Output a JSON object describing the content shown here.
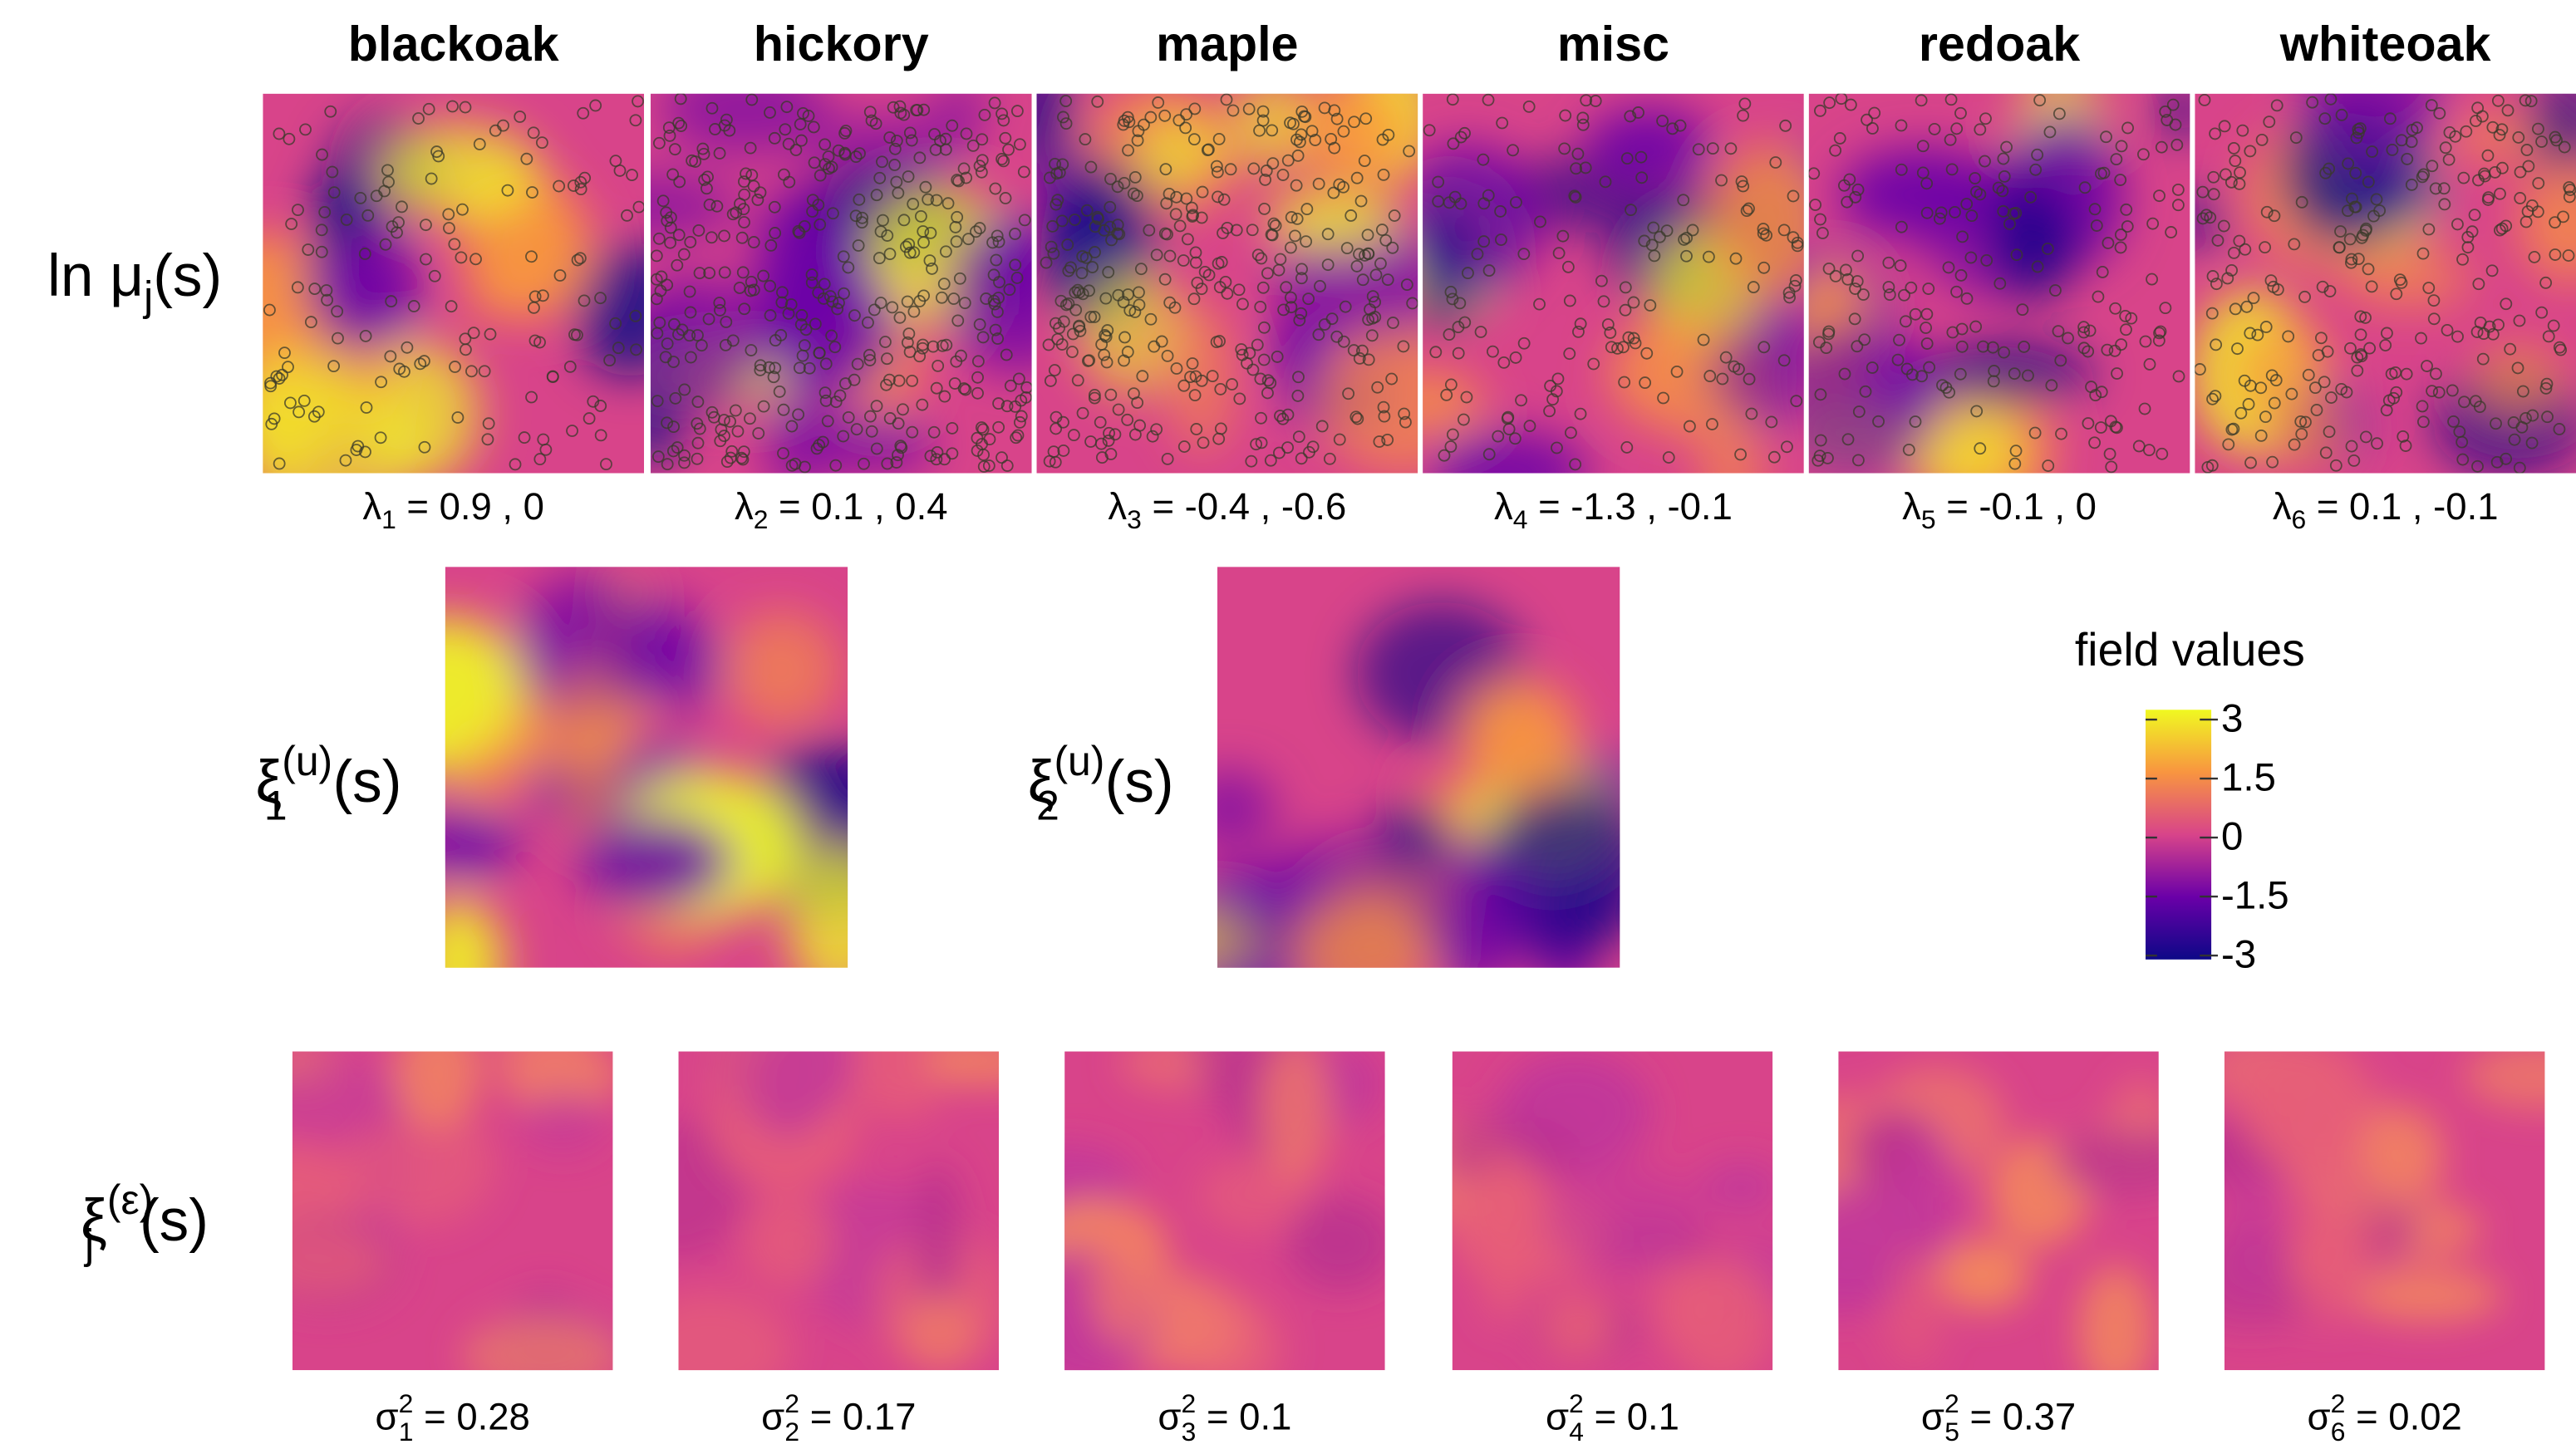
{
  "chart_data": {
    "type": "heatmap",
    "columns": [
      "blackoak",
      "hickory",
      "maple",
      "misc",
      "redoak",
      "whiteoak"
    ],
    "row_labels": [
      {
        "pre": "ln ",
        "base": "μ",
        "sub": "j",
        "rest": "(s)"
      },
      {
        "base": "ξ",
        "sub": "1",
        "sup": "(u)",
        "rest": "(s)"
      },
      {
        "base": "ξ",
        "sub": "2",
        "sup": "(u)",
        "rest": "(s)"
      },
      {
        "base": "ξ",
        "sub": "j",
        "sup": "(ε)",
        "rest": "(s)"
      }
    ],
    "lambda_labels": [
      {
        "base": "λ",
        "sub": "1",
        "rest": " = 0.9 , 0"
      },
      {
        "base": "λ",
        "sub": "2",
        "rest": " = 0.1 , 0.4"
      },
      {
        "base": "λ",
        "sub": "3",
        "rest": " = -0.4 , -0.6"
      },
      {
        "base": "λ",
        "sub": "4",
        "rest": " = -1.3 , -0.1"
      },
      {
        "base": "λ",
        "sub": "5",
        "rest": " = -0.1 , 0"
      },
      {
        "base": "λ",
        "sub": "6",
        "rest": " = 0.1 , -0.1"
      }
    ],
    "sigma_labels": [
      {
        "base": "σ",
        "sub": "1",
        "sup": "2",
        "rest": " = 0.28"
      },
      {
        "base": "σ",
        "sub": "2",
        "sup": "2",
        "rest": " = 0.17"
      },
      {
        "base": "σ",
        "sub": "3",
        "sup": "2",
        "rest": " = 0.1"
      },
      {
        "base": "σ",
        "sub": "4",
        "sup": "2",
        "rest": " = 0.1"
      },
      {
        "base": "σ",
        "sub": "5",
        "sup": "2",
        "rest": " = 0.37"
      },
      {
        "base": "σ",
        "sub": "6",
        "sup": "2",
        "rest": " = 0.02"
      }
    ],
    "colorbar": {
      "title": "field values",
      "lim": [
        -3.1,
        3.25
      ],
      "ticks": [
        3,
        1.5,
        0,
        -1.5,
        -3
      ]
    },
    "colormap": [
      "#0d0887",
      "#6a00a8",
      "#d8448a",
      "#f89540",
      "#f0f921"
    ]
  }
}
